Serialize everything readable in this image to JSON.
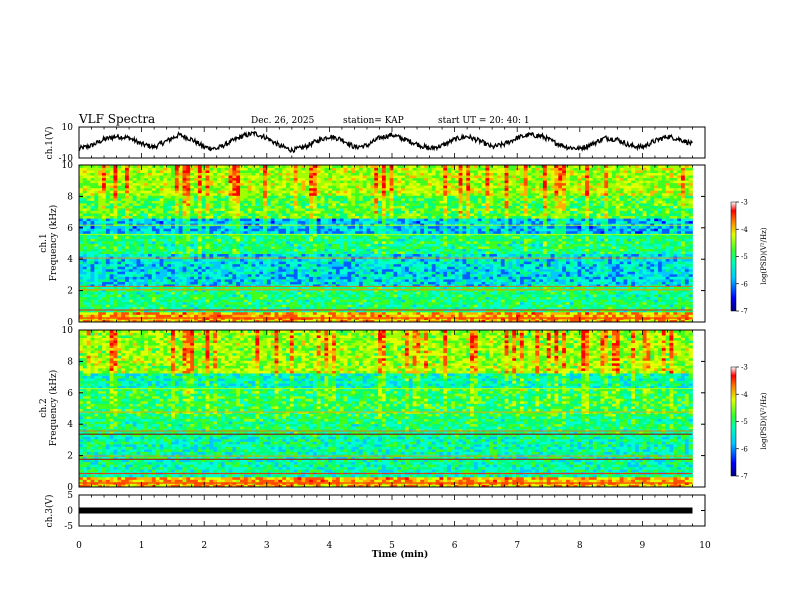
{
  "header": {
    "title": "VLF Spectra",
    "date": "Dec. 26, 2025",
    "station": "station= KAP",
    "start": "start  UT =   20: 40: 1"
  },
  "chart_data": [
    {
      "type": "line",
      "name": "ch1-waveform",
      "ylabel": "ch.1(V)",
      "ylim": [
        -10,
        10
      ],
      "yticks": [
        "10",
        "-10"
      ],
      "xlim": [
        0,
        10
      ],
      "series": [
        {
          "name": "ch.1",
          "x_end": 9.8,
          "description_values": [
            -4,
            -2,
            2,
            4,
            3,
            -1,
            -3,
            1,
            5,
            2,
            -3,
            -4,
            0,
            4,
            6,
            3,
            -2,
            -5,
            -3,
            1,
            4,
            2,
            -3,
            -2,
            3,
            5,
            2,
            -1,
            -4,
            -2,
            2,
            4,
            1,
            -3,
            -1,
            3,
            5,
            4,
            0,
            -3,
            -4,
            -1,
            3,
            2,
            -2,
            -3,
            1,
            4,
            2,
            -1
          ]
        }
      ]
    },
    {
      "type": "heatmap",
      "name": "ch1-spectrogram",
      "ylabel": "ch.1\nFrequency (kHz)",
      "ylim": [
        0,
        10
      ],
      "yticks": [
        "0",
        "2",
        "4",
        "6",
        "8",
        "10"
      ],
      "xlim": [
        0,
        10
      ],
      "colorbar": {
        "label": "log(PSD)(V²/Hz)",
        "range": [
          -7,
          -3
        ],
        "ticks": [
          "-3",
          "-4",
          "-5",
          "-6",
          "-7"
        ]
      }
    },
    {
      "type": "heatmap",
      "name": "ch2-spectrogram",
      "ylabel": "ch.2\nFrequency (kHz)",
      "ylim": [
        0,
        10
      ],
      "yticks": [
        "0",
        "2",
        "4",
        "6",
        "8",
        "10"
      ],
      "xlim": [
        0,
        10
      ],
      "colorbar": {
        "label": "log(PSD)(V²/Hz)",
        "range": [
          -7,
          -3
        ],
        "ticks": [
          "-3",
          "-4",
          "-5",
          "-6",
          "-7"
        ]
      }
    },
    {
      "type": "line",
      "name": "ch3-waveform",
      "ylabel": "ch.3(V)",
      "ylim": [
        -5,
        5
      ],
      "yticks": [
        "5",
        "0",
        "-5"
      ],
      "xlim": [
        0,
        10
      ],
      "series": [
        {
          "name": "ch.3",
          "level": 0,
          "x_end": 9.8
        }
      ]
    }
  ],
  "xaxis": {
    "label": "Time  (min)",
    "ticks": [
      "0",
      "1",
      "2",
      "3",
      "4",
      "5",
      "6",
      "7",
      "8",
      "9",
      "10"
    ]
  }
}
